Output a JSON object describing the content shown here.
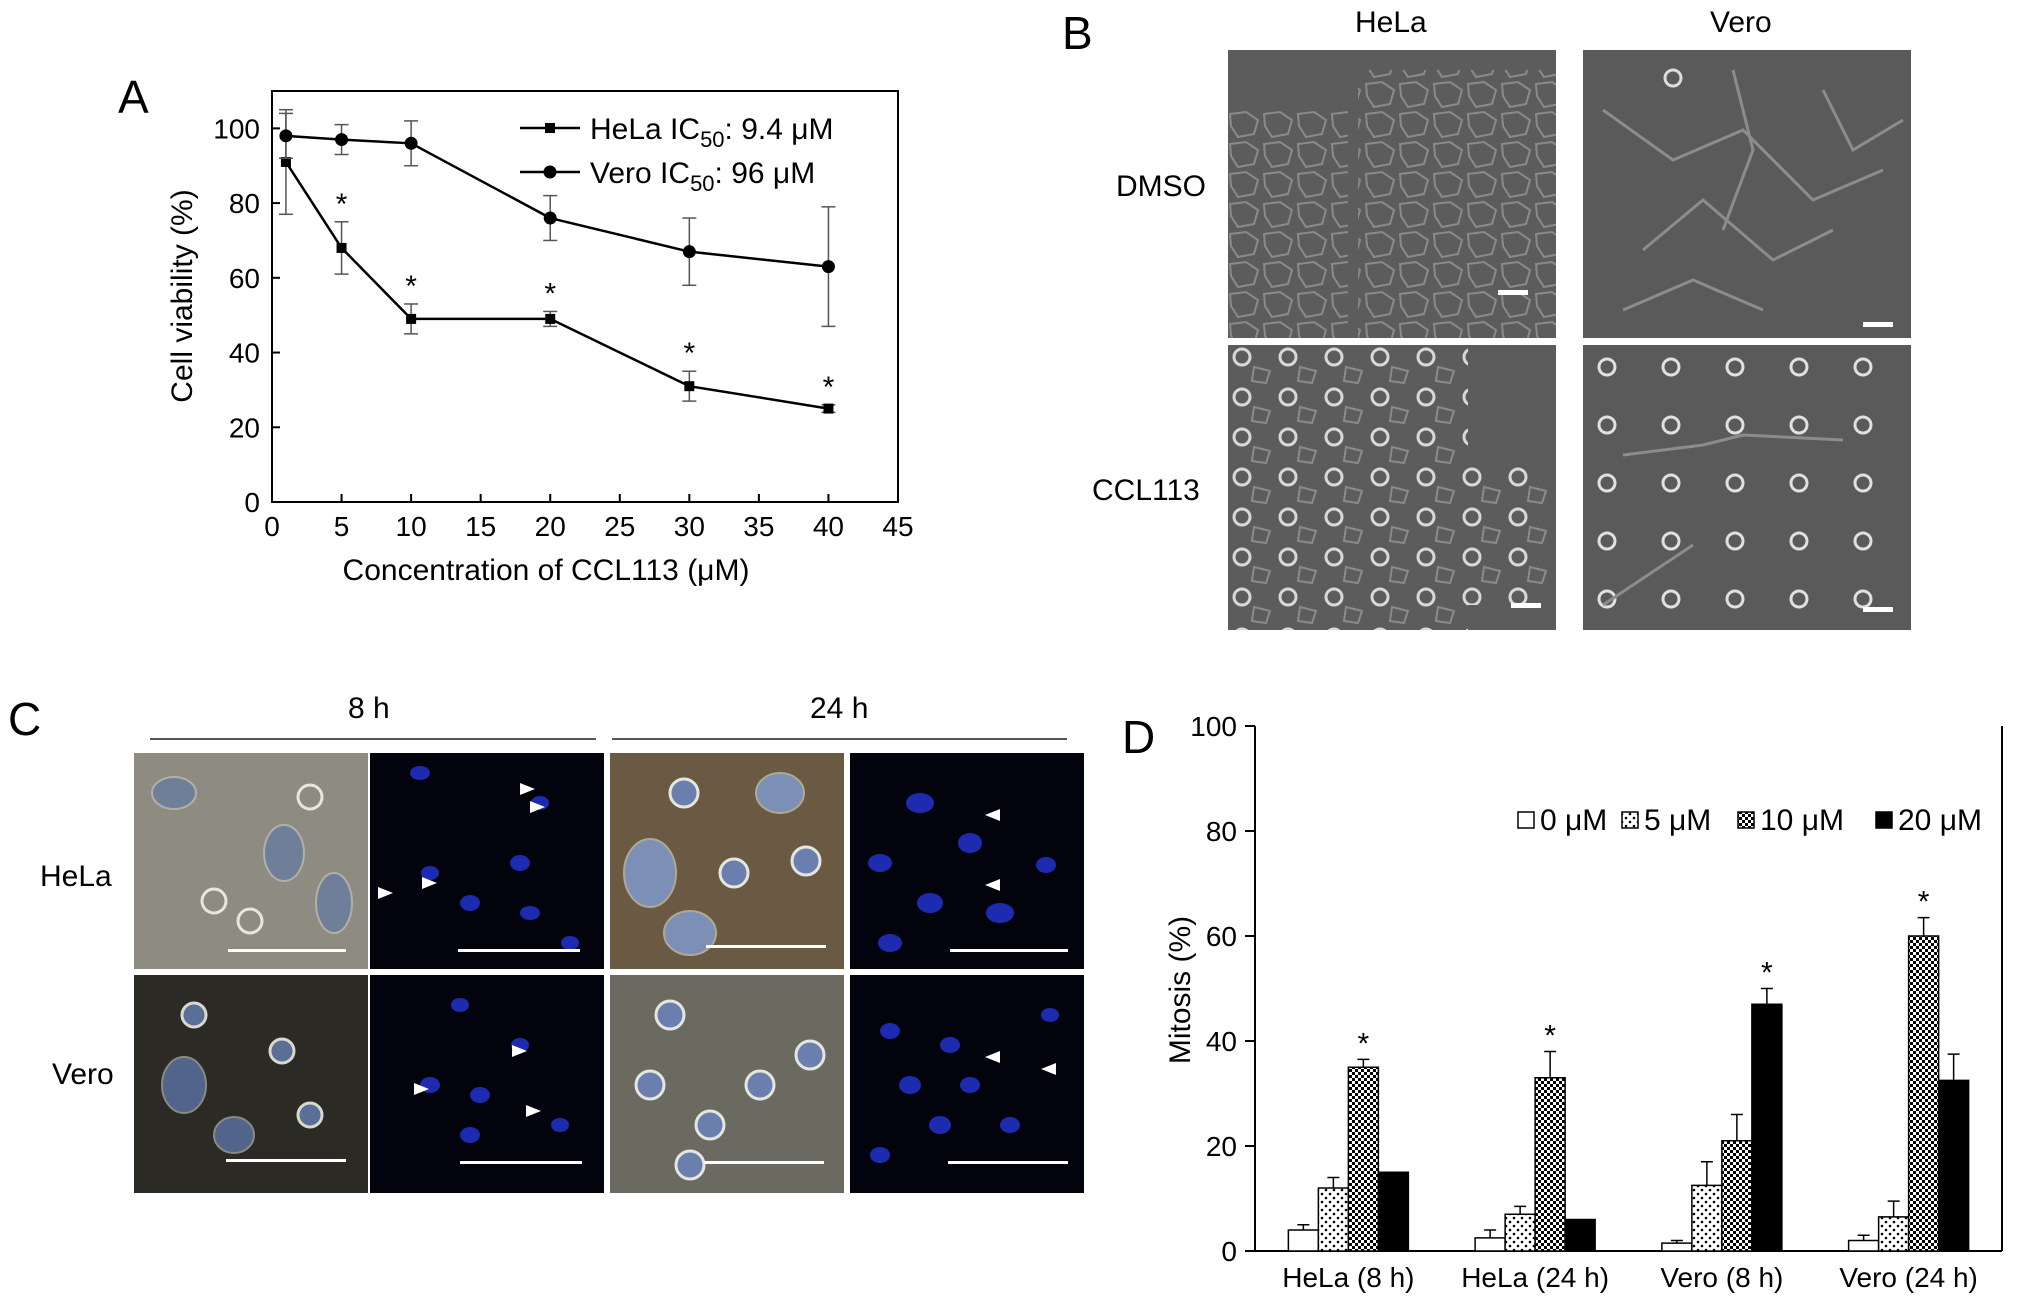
{
  "panels": {
    "A": {
      "letter": "A",
      "chart_data": {
        "type": "line",
        "xlabel": "Concentration of CCL113 (μM)",
        "ylabel": "Cell viability (%)",
        "xlim": [
          0,
          45
        ],
        "ylim": [
          0,
          110
        ],
        "xticks": [
          "0",
          "5",
          "10",
          "15",
          "20",
          "25",
          "30",
          "35",
          "40",
          "45"
        ],
        "yticks": [
          "0",
          "20",
          "40",
          "60",
          "80",
          "100"
        ],
        "grid": false,
        "legend_position": "top-right",
        "series": [
          {
            "name": "HeLa IC50: 9.4 μM",
            "legend_parts": {
              "prefix": "HeLa IC",
              "sub": "50",
              "suffix": ": 9.4 μM"
            },
            "marker": "square",
            "x": [
              1,
              5,
              10,
              20,
              30,
              40
            ],
            "y": [
              91,
              68,
              49,
              49,
              31,
              25
            ],
            "err": [
              14,
              7,
              4,
              2,
              4,
              1
            ],
            "significant": [
              false,
              true,
              true,
              true,
              true,
              true
            ]
          },
          {
            "name": "Vero IC50: 96 μM",
            "legend_parts": {
              "prefix": "Vero IC",
              "sub": "50",
              "suffix": ": 96 μM"
            },
            "marker": "circle",
            "x": [
              1,
              5,
              10,
              20,
              30,
              40
            ],
            "y": [
              98,
              97,
              96,
              76,
              67,
              63
            ],
            "err": [
              6,
              4,
              6,
              6,
              9,
              16
            ]
          }
        ],
        "significance_marker": "*"
      }
    },
    "B": {
      "letter": "B",
      "col_labels": [
        "HeLa",
        "Vero"
      ],
      "row_labels": [
        "DMSO",
        "CCL113"
      ]
    },
    "C": {
      "letter": "C",
      "time_labels": [
        "8 h",
        "24 h"
      ],
      "row_labels": [
        "HeLa",
        "Vero"
      ]
    },
    "D": {
      "letter": "D",
      "chart_data": {
        "type": "bar",
        "ylabel": "Mitosis (%)",
        "ylim": [
          0,
          100
        ],
        "yticks": [
          "0",
          "20",
          "40",
          "60",
          "80",
          "100"
        ],
        "categories": [
          "HeLa (8 h)",
          "HeLa (24 h)",
          "Vero (8 h)",
          "Vero (24 h)"
        ],
        "legend_position": "top-right",
        "series": [
          {
            "name": "0 μM",
            "fill": "white",
            "values": [
              4,
              2.5,
              1.5,
              2
            ],
            "err": [
              1,
              1.5,
              0.5,
              1
            ]
          },
          {
            "name": "5 μM",
            "fill": "dotted",
            "values": [
              12,
              7,
              12.5,
              6.5
            ],
            "err": [
              2,
              1.5,
              4.5,
              3
            ]
          },
          {
            "name": "10 μM",
            "fill": "checker",
            "values": [
              35,
              33,
              21,
              60
            ],
            "err": [
              1.5,
              5,
              5,
              3.5
            ]
          },
          {
            "name": "20 μM",
            "fill": "black",
            "values": [
              15,
              6,
              47,
              32.5
            ],
            "err": [
              0,
              0,
              3,
              5
            ]
          }
        ],
        "significant": [
          {
            "category": "HeLa (8 h)",
            "series": "10 μM"
          },
          {
            "category": "HeLa (24 h)",
            "series": "10 μM"
          },
          {
            "category": "Vero (8 h)",
            "series": "20 μM"
          },
          {
            "category": "Vero (24 h)",
            "series": "10 μM"
          }
        ],
        "significance_marker": "*"
      }
    }
  }
}
